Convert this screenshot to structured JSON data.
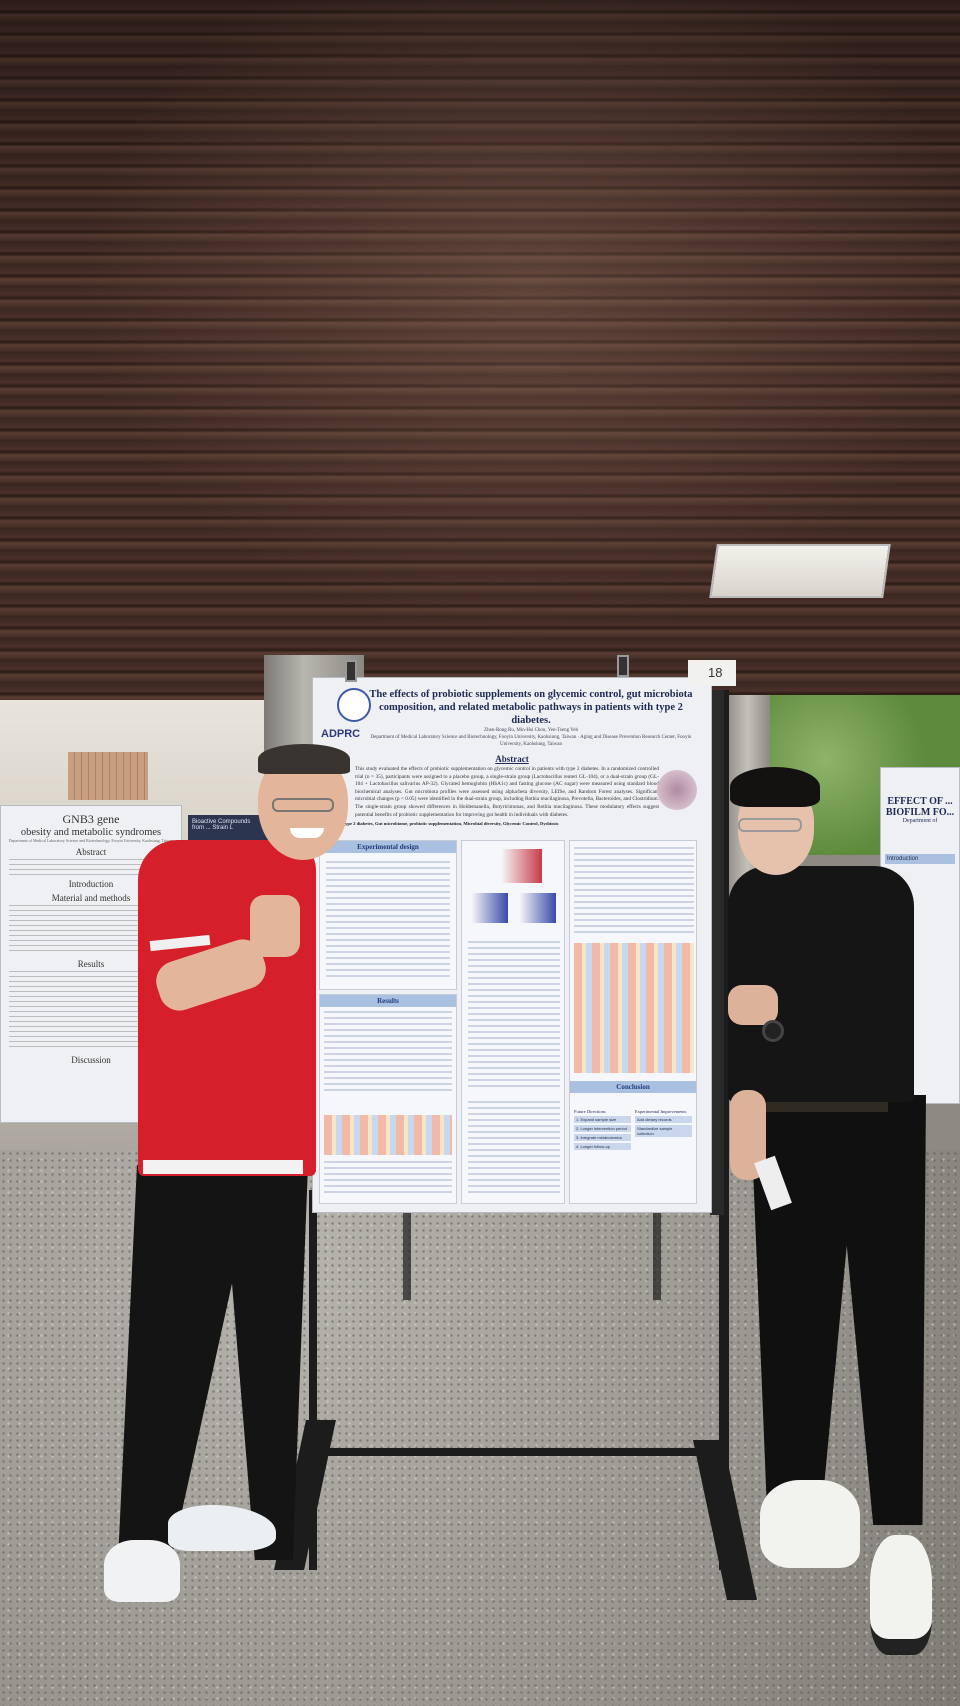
{
  "scene": {
    "description_tag": "poster-session-photo"
  },
  "main_poster": {
    "title": "The effects of probiotic supplements on glycemic control, gut microbiota composition, and related metabolic pathways in patients with type 2 diabetes.",
    "authors": "Zhen-Rong Ru, Min-Hsi Chou, Yen-Tseng Yeh",
    "affiliation": "Department of Medical Laboratory Science and Biotechnology, Fooyin University, Kaohsiung, Taiwan · Aging and Disease Prevention Research Center, Fooyin University, Kaohsiung, Taiwan",
    "logo": "ADPRC",
    "abstract_heading": "Abstract",
    "abstract_text": "This study evaluated the effects of probiotic supplementation on glycemic control in patients with type 2 diabetes. In a randomized controlled trial (n = 35), participants were assigned to a placebo group, a single-strain group (Lactobacillus reuteri GL-104), or a dual-strain group (GL-104 + Lactobacillus salivarius AP-32). Glycated hemoglobin (HbA1c) and fasting glucose (AC sugar) were measured using standard blood biochemical analyses. Gut microbiota profiles were assessed using alpha/beta diversity, LEfSe, and Random Forest analyses. Significant microbial changes (p < 0.05) were identified in the dual-strain group, including Rothia mucilaginosa, Prevotella, Bacteroides, and Clostridium. The single-strain group showed differences in Holdemanella, Butyricimonas, and Rothia mucilaginosa. These modulatory effects suggest potential benefits of probiotic supplementation for improving gut health in individuals with diabetes.",
    "keywords": "Keywords: type 2 diabetes, Gut microbiome, probiotic supplementation, Microbial diversity, Glycemic Control, Dysbiosis",
    "sections": {
      "experimental_design": "Experimental design",
      "results": "Results",
      "conclusion": "Conclusion"
    },
    "future_directions": {
      "heading": "Future Directions",
      "items": [
        "1. Expand sample size",
        "2. Longer intervention period",
        "3. Integrate metabolomics",
        "4. Longer follow-up"
      ]
    },
    "experimental_improvements": {
      "heading": "Experimental Improvements",
      "items": [
        "Add dietary records",
        "Standardize sample collection"
      ]
    },
    "board_number": "18"
  },
  "left_poster": {
    "title_line1": "GNB3 gene",
    "title_line2": "obesity and metabolic syndromes",
    "affiliation": "Department of Medical Laboratory Science and Biotechnology, Fooyin University, Kaohsiung, Taiwan",
    "sections": [
      "Abstract",
      "Introduction",
      "Material and methods",
      "Results",
      "Discussion"
    ]
  },
  "middle_poster": {
    "title": "Bioactive Compounds from ... Strain L"
  },
  "right_poster": {
    "title": "EFFECT OF ... BIOFILM FO...",
    "department": "Department of",
    "section": "Introduction"
  },
  "colors": {
    "shirt_red": "#d8202a",
    "ceiling_wood": "#3a2620",
    "poster_blue": "#aac0e0"
  }
}
